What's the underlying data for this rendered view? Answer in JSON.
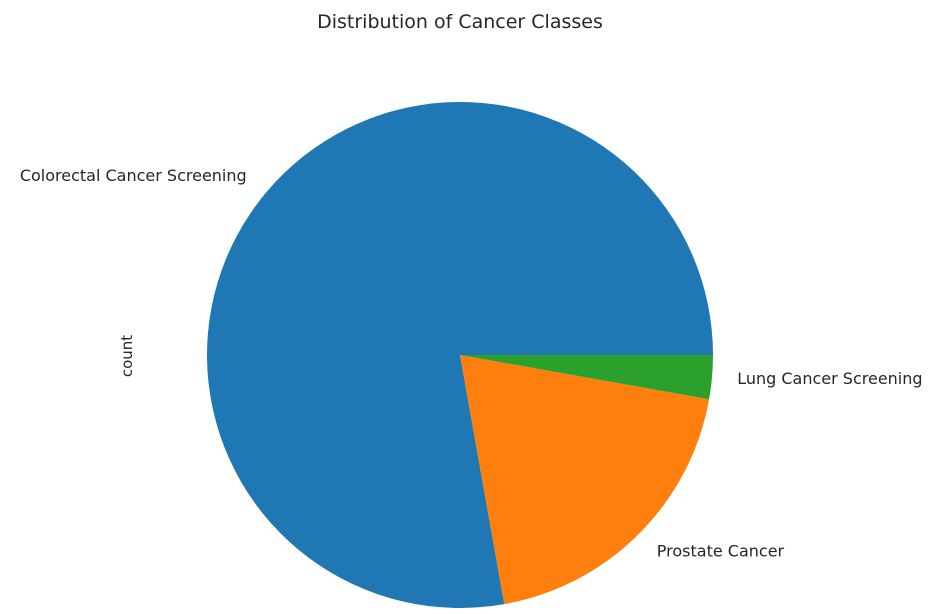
{
  "chart_data": {
    "type": "pie",
    "title": "Distribution of Cancer Classes",
    "ylabel": "count",
    "xlabel": "",
    "labels": [
      "Colorectal Cancer Screening",
      "Prostate Cancer",
      "Lung Cancer Screening"
    ],
    "values": [
      77.8,
      19.4,
      2.8
    ],
    "colors": [
      "#1f77b4",
      "#ff7f0e",
      "#2ca02c"
    ],
    "start_angle_deg": 0,
    "direction": "counterclockwise",
    "legend": false,
    "grid": false
  }
}
